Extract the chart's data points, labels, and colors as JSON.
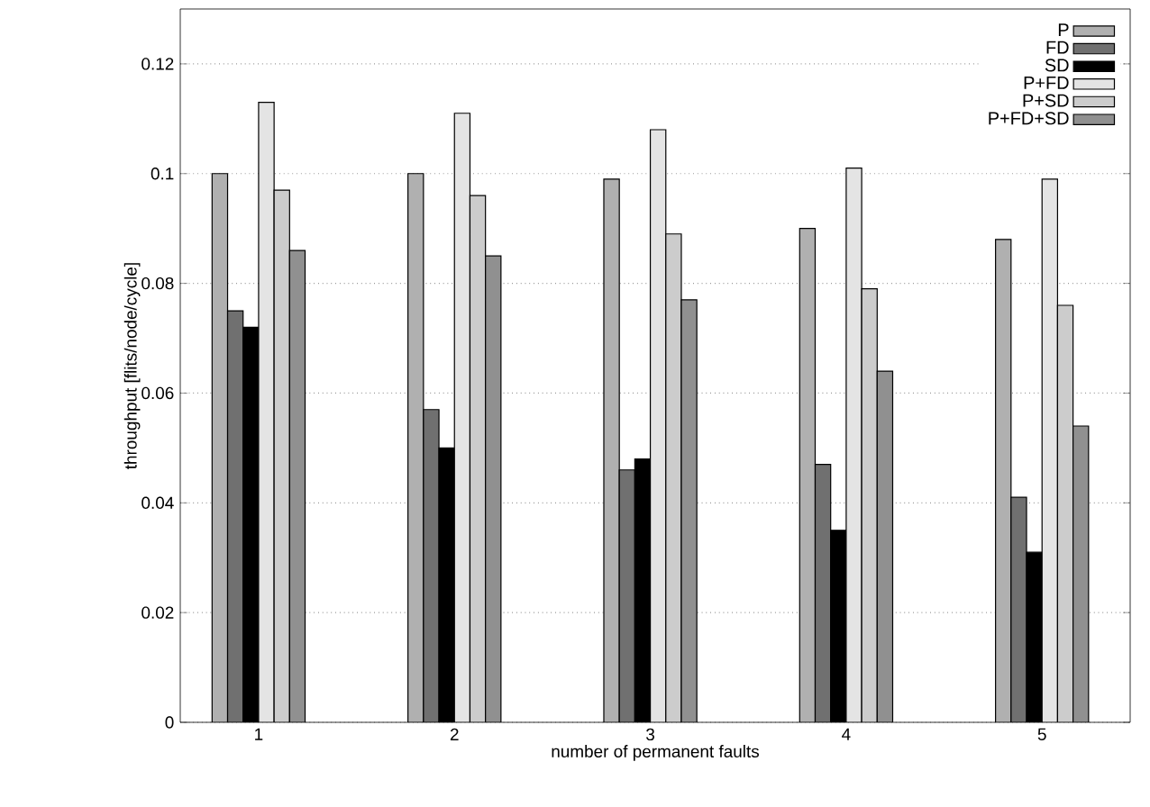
{
  "chart_data": {
    "type": "bar",
    "xlabel": "number of permanent faults",
    "ylabel": "throughput [flits/node/cycle]",
    "categories": [
      "1",
      "2",
      "3",
      "4",
      "5"
    ],
    "series": [
      {
        "name": "P",
        "color": "#b0b0b0",
        "values": [
          0.1,
          0.1,
          0.099,
          0.09,
          0.088
        ]
      },
      {
        "name": "FD",
        "color": "#707070",
        "values": [
          0.075,
          0.057,
          0.046,
          0.047,
          0.041
        ]
      },
      {
        "name": "SD",
        "color": "#000000",
        "values": [
          0.072,
          0.05,
          0.048,
          0.035,
          0.031
        ]
      },
      {
        "name": "P+FD",
        "color": "#e4e4e4",
        "values": [
          0.113,
          0.111,
          0.108,
          0.101,
          0.099
        ]
      },
      {
        "name": "P+SD",
        "color": "#cccccc",
        "values": [
          0.097,
          0.096,
          0.089,
          0.079,
          0.076
        ]
      },
      {
        "name": "P+FD+SD",
        "color": "#909090",
        "values": [
          0.086,
          0.085,
          0.077,
          0.064,
          0.054
        ]
      }
    ],
    "ylim": [
      0,
      0.13
    ],
    "yticks": [
      0,
      0.02,
      0.04,
      0.06,
      0.08,
      0.1,
      0.12
    ],
    "grid": "y",
    "legend": "top right"
  }
}
